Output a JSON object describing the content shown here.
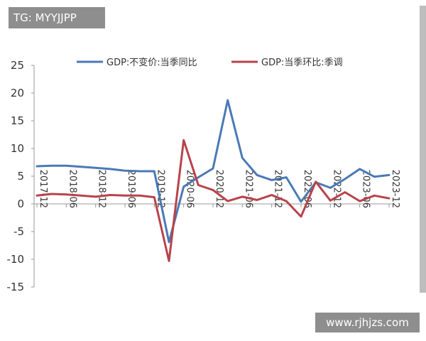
{
  "watermark_top_left": "TG: MYYJJPP",
  "watermark_bottom_right": "www.rjhjzs.com",
  "colors": {
    "series1": "#4a7ab5",
    "series2": "#b7434a",
    "axis": "#9a9a9a",
    "text": "#333333"
  },
  "chart_data": {
    "type": "line",
    "title": "",
    "xlabel": "",
    "ylabel": "",
    "ylim": [
      -15,
      25
    ],
    "yticks": [
      -15,
      -10,
      -5,
      0,
      5,
      10,
      15,
      20,
      25
    ],
    "x_tick_labels": [
      "2017-12",
      "2018-06",
      "2018-12",
      "2019-06",
      "2019-12",
      "2020-06",
      "2020-12",
      "2021-06",
      "2021-12",
      "2022-06",
      "2022-12",
      "2023-06",
      "2023-12"
    ],
    "x_periods": [
      "2017-12",
      "2018-03",
      "2018-06",
      "2018-09",
      "2018-12",
      "2019-03",
      "2019-06",
      "2019-09",
      "2019-12",
      "2020-03",
      "2020-06",
      "2020-09",
      "2020-12",
      "2021-03",
      "2021-06",
      "2021-09",
      "2021-12",
      "2022-03",
      "2022-06",
      "2022-09",
      "2022-12",
      "2023-03",
      "2023-06",
      "2023-09",
      "2023-12"
    ],
    "legend_position": "top",
    "grid": false,
    "series": [
      {
        "name": "GDP:不变价:当季同比",
        "color": "#4a7ab5",
        "values": [
          6.8,
          6.9,
          6.9,
          6.7,
          6.5,
          6.3,
          6.0,
          5.9,
          5.9,
          -6.9,
          3.1,
          4.8,
          6.4,
          18.7,
          8.3,
          5.2,
          4.3,
          4.8,
          0.4,
          3.9,
          2.9,
          4.5,
          6.3,
          4.9,
          5.2
        ]
      },
      {
        "name": "GDP:当季环比:季调",
        "color": "#b7434a",
        "values": [
          1.5,
          1.8,
          1.7,
          1.5,
          1.3,
          1.6,
          1.5,
          1.5,
          1.2,
          -10.3,
          11.5,
          3.4,
          2.5,
          0.5,
          1.3,
          0.7,
          1.6,
          0.5,
          -2.3,
          4.0,
          0.6,
          2.1,
          0.5,
          1.5,
          1.0
        ]
      }
    ]
  }
}
